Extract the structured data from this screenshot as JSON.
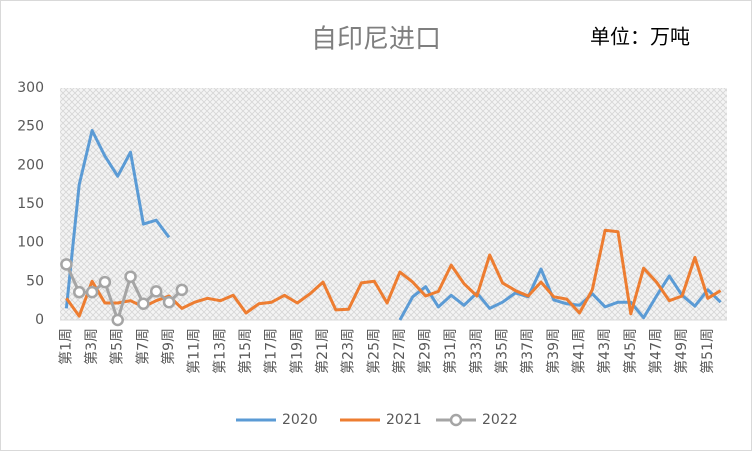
{
  "chart_data": {
    "type": "line",
    "title": "自印尼进口",
    "annotation": "单位：万吨",
    "categories": [
      "第1周",
      null,
      "第3周",
      null,
      "第5周",
      null,
      "第7周",
      null,
      "第9周",
      null,
      "第11周",
      null,
      "第13周",
      null,
      "第15周",
      null,
      "第17周",
      null,
      "第19周",
      null,
      "第21周",
      null,
      "第23周",
      null,
      "第25周",
      null,
      "第27周",
      null,
      "第29周",
      null,
      "第31周",
      null,
      "第33周",
      null,
      "第35周",
      null,
      "第37周",
      null,
      "第39周",
      null,
      "第41周",
      null,
      "第43周",
      null,
      "第45周",
      null,
      "第47周",
      null,
      "第49周",
      null,
      "第51周",
      null
    ],
    "series": [
      {
        "name": "2020",
        "color": "#5b9bd5",
        "marker": false,
        "values": [
          15,
          175,
          245,
          212,
          186,
          217,
          124,
          129,
          107,
          null,
          null,
          null,
          null,
          null,
          null,
          null,
          null,
          null,
          null,
          null,
          null,
          null,
          null,
          null,
          null,
          null,
          0,
          30,
          43,
          17,
          32,
          19,
          35,
          15,
          23,
          35,
          30,
          66,
          26,
          21,
          19,
          34,
          17,
          23,
          23,
          3,
          31,
          57,
          32,
          18,
          39,
          23
        ]
      },
      {
        "name": "2021",
        "color": "#ed7d31",
        "marker": false,
        "values": [
          28,
          5,
          50,
          22,
          22,
          25,
          17,
          25,
          31,
          15,
          23,
          28,
          25,
          32,
          9,
          21,
          23,
          32,
          22,
          34,
          49,
          13,
          14,
          48,
          50,
          22,
          62,
          49,
          31,
          37,
          71,
          47,
          31,
          84,
          48,
          38,
          31,
          49,
          30,
          27,
          9,
          39,
          116,
          114,
          8,
          67,
          49,
          25,
          31,
          81,
          28,
          38
        ]
      },
      {
        "name": "2022",
        "color": "#a5a5a5",
        "marker": true,
        "values": [
          72,
          36,
          36,
          49,
          0,
          56,
          21,
          37,
          23,
          39,
          null,
          null,
          null,
          null,
          null,
          null,
          null,
          null,
          null,
          null,
          null,
          null,
          null,
          null,
          null,
          null,
          null,
          null,
          null,
          null,
          null,
          null,
          null,
          null,
          null,
          null,
          null,
          null,
          null,
          null,
          null,
          null,
          null,
          null,
          null,
          null,
          null,
          null,
          null,
          null,
          null,
          null
        ]
      }
    ],
    "ylim": [
      0,
      300
    ],
    "yticks": [
      0,
      50,
      100,
      150,
      200,
      250,
      300
    ],
    "grid": false,
    "legend": "bottom"
  }
}
